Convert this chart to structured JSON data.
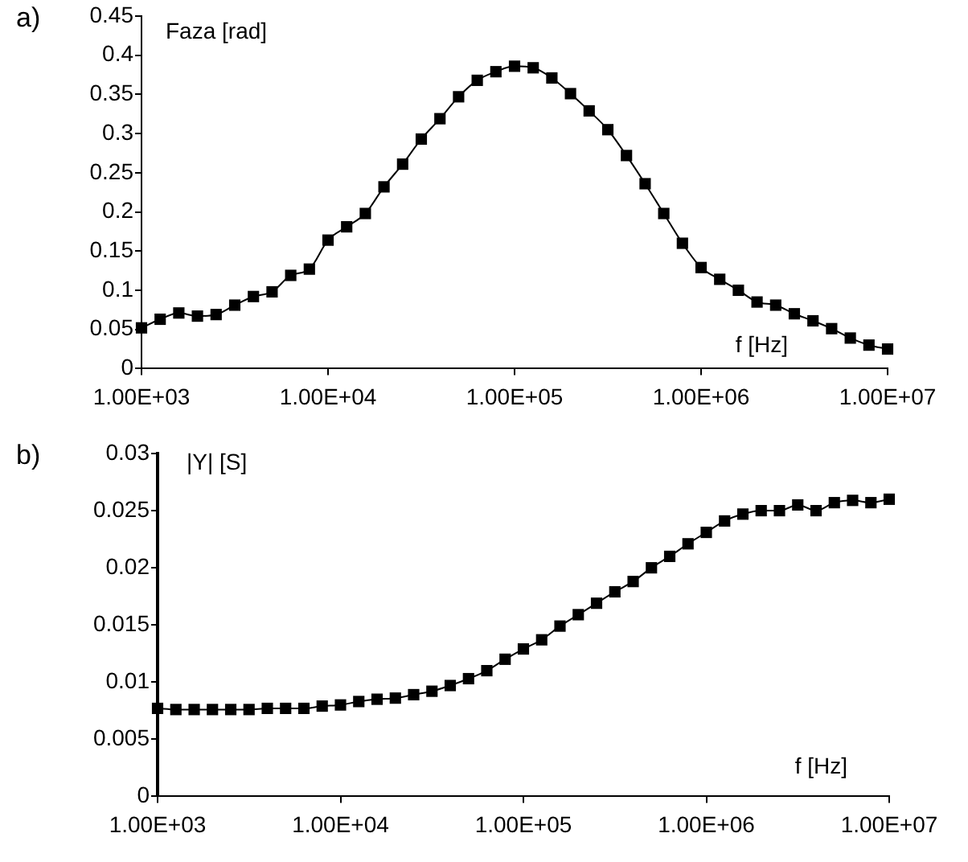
{
  "chart_data": [
    {
      "type": "line",
      "annotations": [
        "a)"
      ],
      "ylabel": "Faza [rad]",
      "xlabel": "f [Hz]",
      "log": "x",
      "marker": "square",
      "line_style": "solid",
      "grid": false,
      "legend": false,
      "x": [
        1000,
        1259,
        1585,
        1995,
        2512,
        3162,
        3981,
        5012,
        6310,
        7943,
        10000,
        12589,
        15849,
        19953,
        25119,
        31623,
        39811,
        50119,
        63096,
        79433,
        100000,
        125893,
        158489,
        199526,
        251189,
        316228,
        398107,
        501187,
        630957,
        794328,
        1000000,
        1258925,
        1584893,
        1995262,
        2511886,
        3162278,
        3981072,
        5011872,
        6309573,
        7943282,
        10000000
      ],
      "series": [
        {
          "color": "#000000",
          "values": [
            0.052,
            0.063,
            0.071,
            0.067,
            0.069,
            0.081,
            0.092,
            0.098,
            0.119,
            0.127,
            0.164,
            0.181,
            0.198,
            0.232,
            0.261,
            0.293,
            0.319,
            0.347,
            0.368,
            0.379,
            0.386,
            0.384,
            0.371,
            0.351,
            0.329,
            0.305,
            0.272,
            0.236,
            0.198,
            0.16,
            0.129,
            0.114,
            0.1,
            0.085,
            0.081,
            0.07,
            0.061,
            0.051,
            0.039,
            0.03,
            0.025
          ]
        }
      ],
      "xlim": [
        1000,
        10000000
      ],
      "xticks": [
        {
          "value": 1000,
          "label": "1.00E+03"
        },
        {
          "value": 10000,
          "label": "1.00E+04"
        },
        {
          "value": 100000,
          "label": "1.00E+05"
        },
        {
          "value": 1000000,
          "label": "1.00E+06"
        },
        {
          "value": 10000000,
          "label": "1.00E+07"
        }
      ],
      "ylim": [
        0,
        0.45
      ],
      "yticks": [
        0,
        0.05,
        0.1,
        0.15,
        0.2,
        0.25,
        0.3,
        0.35,
        0.4,
        0.45
      ]
    },
    {
      "type": "line",
      "annotations": [
        "b)"
      ],
      "ylabel": "|Y| [S]",
      "xlabel": "f [Hz]",
      "log": "x",
      "marker": "square",
      "line_style": "solid",
      "grid": false,
      "legend": false,
      "x": [
        1000,
        1259,
        1585,
        1995,
        2512,
        3162,
        3981,
        5012,
        6310,
        7943,
        10000,
        12589,
        15849,
        19953,
        25119,
        31623,
        39811,
        50119,
        63096,
        79433,
        100000,
        125893,
        158489,
        199526,
        251189,
        316228,
        398107,
        501187,
        630957,
        794328,
        1000000,
        1258925,
        1584893,
        1995262,
        2511886,
        3162278,
        3981072,
        5011872,
        6309573,
        7943282,
        10000000
      ],
      "series": [
        {
          "color": "#000000",
          "values": [
            0.0077,
            0.0076,
            0.0076,
            0.0076,
            0.0076,
            0.0076,
            0.0077,
            0.0077,
            0.0077,
            0.0079,
            0.008,
            0.0083,
            0.0085,
            0.0086,
            0.0089,
            0.0092,
            0.0097,
            0.0103,
            0.011,
            0.012,
            0.0129,
            0.0137,
            0.0149,
            0.0159,
            0.0169,
            0.0179,
            0.0188,
            0.02,
            0.021,
            0.0221,
            0.0231,
            0.0241,
            0.0247,
            0.025,
            0.025,
            0.0255,
            0.025,
            0.0257,
            0.0259,
            0.0257,
            0.026
          ]
        }
      ],
      "xlim": [
        1000,
        10000000
      ],
      "xticks": [
        {
          "value": 1000,
          "label": "1.00E+03"
        },
        {
          "value": 10000,
          "label": "1.00E+04"
        },
        {
          "value": 100000,
          "label": "1.00E+05"
        },
        {
          "value": 1000000,
          "label": "1.00E+06"
        },
        {
          "value": 10000000,
          "label": "1.00E+07"
        }
      ],
      "ylim": [
        0,
        0.03
      ],
      "yticks": [
        0,
        0.005,
        0.01,
        0.015,
        0.02,
        0.025,
        0.03
      ]
    }
  ]
}
